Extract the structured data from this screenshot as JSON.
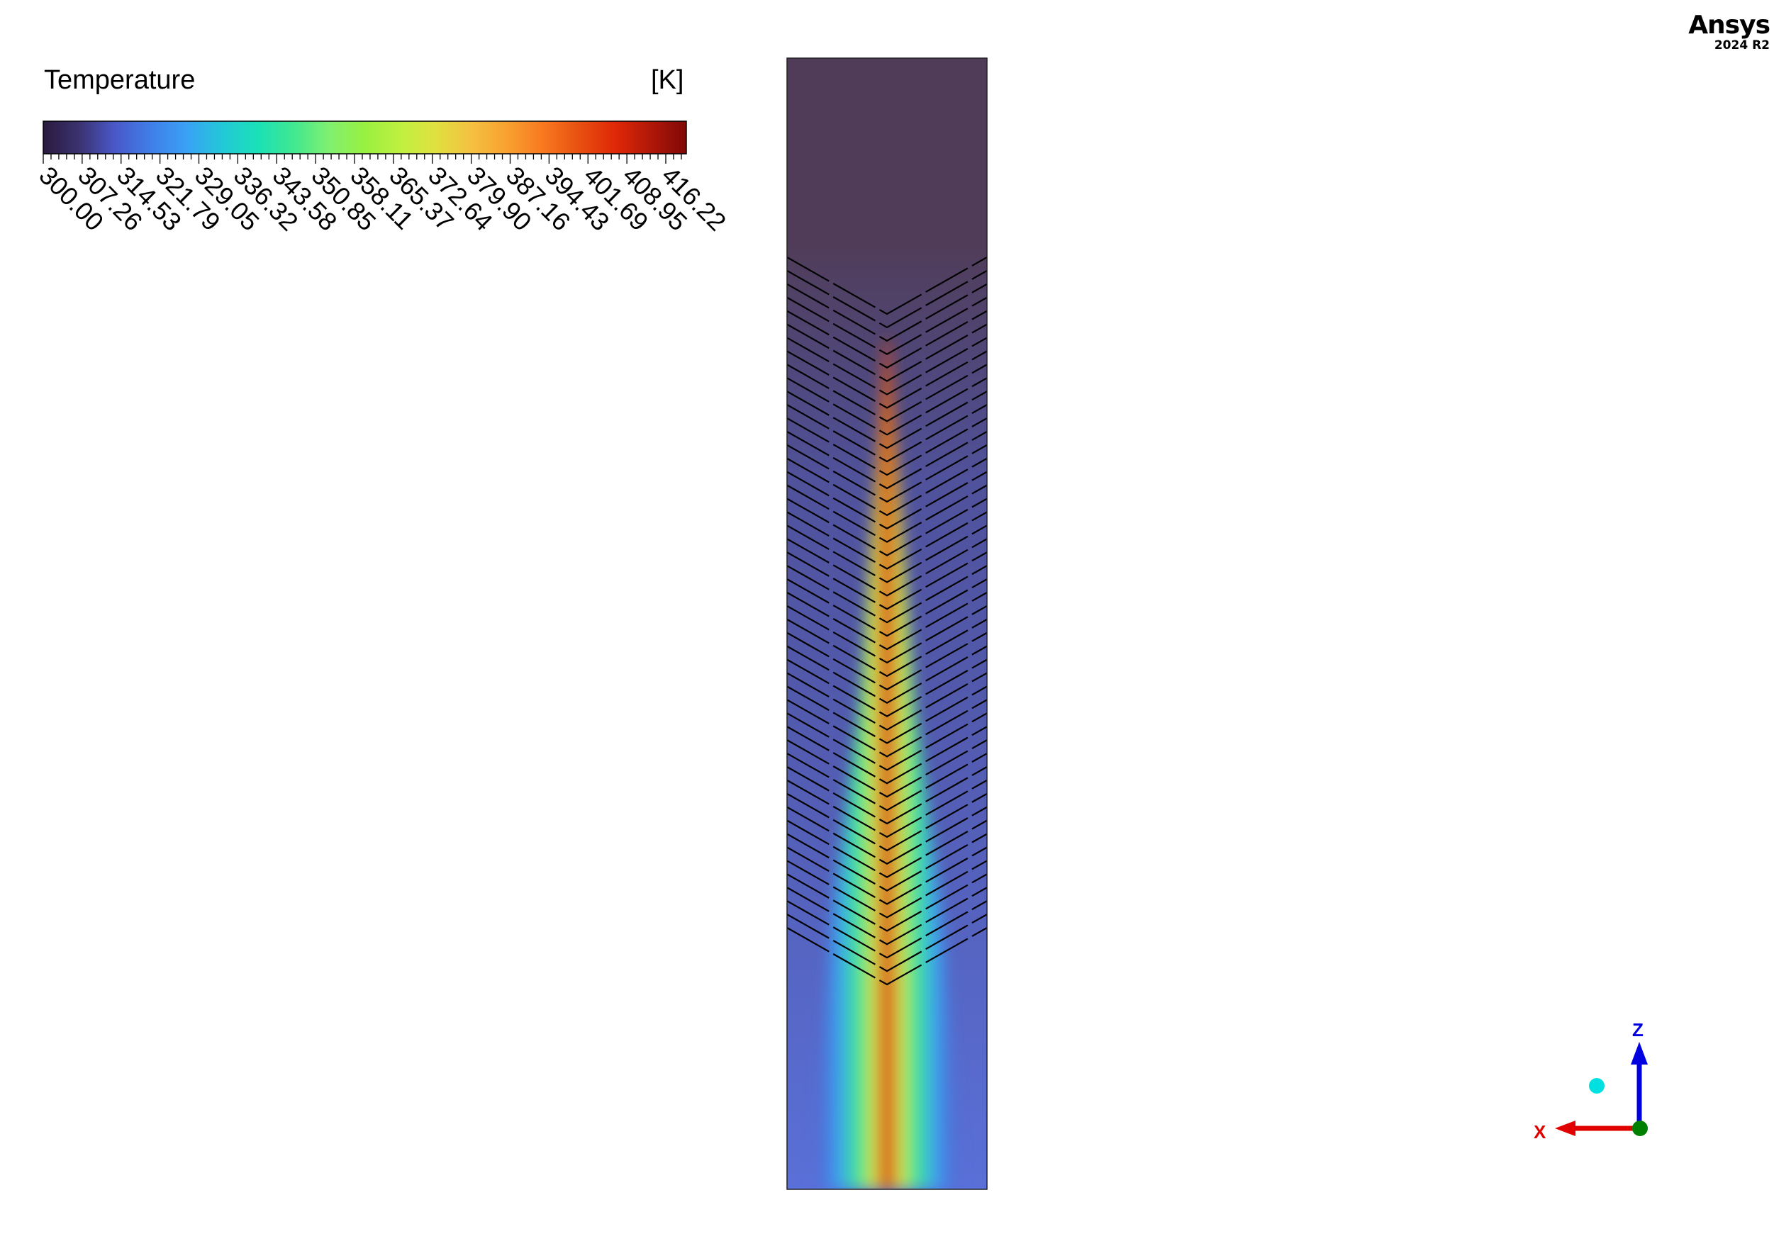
{
  "legend": {
    "title": "Temperature",
    "unit": "[K]",
    "tick_labels": [
      "300.00",
      "307.26",
      "314.53",
      "321.79",
      "329.05",
      "336.32",
      "343.58",
      "350.85",
      "358.11",
      "365.37",
      "372.64",
      "379.90",
      "387.16",
      "394.43",
      "401.69",
      "408.95",
      "416.22"
    ],
    "colormap": [
      "#2a1a3e",
      "#3b3270",
      "#4a58c8",
      "#3f7ee8",
      "#3aa0f5",
      "#22c8d8",
      "#1ae0b8",
      "#40e890",
      "#80f070",
      "#98f040",
      "#c0f040",
      "#e0e040",
      "#f5c040",
      "#f8a030",
      "#f87820",
      "#e85010",
      "#e02808",
      "#b01808",
      "#800808"
    ]
  },
  "branding": {
    "name": "Ansys",
    "version": "2024 R2"
  },
  "triad": {
    "x_label": "X",
    "z_label": "Z",
    "x_color": "#e00000",
    "z_color": "#0000e0",
    "origin_color": "#008000",
    "view_ball_color": "#00e0e0"
  },
  "contour": {
    "background_color": "#503c58",
    "baffle_count": 51
  }
}
